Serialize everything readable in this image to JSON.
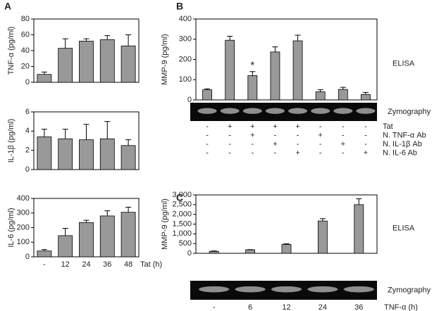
{
  "chart_data": [
    {
      "type": "bar",
      "panel": "A",
      "y_label": "TNF-α (pg/ml)",
      "categories": [
        null,
        null,
        null,
        null,
        null
      ],
      "values": [
        10,
        43,
        52,
        54,
        46
      ],
      "errors": [
        3,
        12,
        3,
        5,
        14
      ],
      "color": "#999999",
      "ylim": [
        0,
        80
      ],
      "yticks": [
        0,
        20,
        40,
        60,
        80
      ]
    },
    {
      "type": "bar",
      "y_label": "IL-1β (pg/ml)",
      "categories": [
        null,
        null,
        null,
        null,
        null
      ],
      "values": [
        3.4,
        3.2,
        3.1,
        3.2,
        2.5
      ],
      "errors": [
        0.8,
        1.0,
        1.6,
        1.8,
        0.6
      ],
      "color": "#999999",
      "ylim": [
        0,
        6
      ],
      "yticks": [
        0,
        2,
        4,
        6
      ]
    },
    {
      "type": "bar",
      "y_label": "IL-6 (pg/ml)",
      "x_label": "Tat (h)",
      "categories": [
        "-",
        "12",
        "24",
        "36",
        "48"
      ],
      "values": [
        40,
        145,
        235,
        280,
        305
      ],
      "errors": [
        10,
        50,
        15,
        35,
        35
      ],
      "color": "#999999",
      "ylim": [
        0,
        400
      ],
      "yticks": [
        0,
        100,
        200,
        300,
        400
      ]
    },
    {
      "type": "bar",
      "panel": "B",
      "y_label": "MMP-9 (pg/ml)",
      "categories": [
        null,
        null,
        null,
        null,
        null,
        null,
        null,
        null
      ],
      "values": [
        50,
        295,
        120,
        237,
        292,
        40,
        52,
        27
      ],
      "errors": [
        5,
        20,
        20,
        25,
        28,
        10,
        10,
        10
      ],
      "color": "#999999",
      "ylim": [
        0,
        400
      ],
      "yticks": [
        0,
        100,
        200,
        300,
        400
      ],
      "annotation": {
        "text": "*",
        "index": 2
      },
      "elisa_label": "ELISA",
      "zymography_label": "Zymography",
      "treatment_table": [
        {
          "label": "Tat",
          "signs": [
            "-",
            "+",
            "+",
            "+",
            "+",
            "-",
            "-",
            "-"
          ]
        },
        {
          "label": "N. TNF-α Ab",
          "signs": [
            "-",
            "-",
            "+",
            "-",
            "-",
            "+",
            "-",
            "-"
          ]
        },
        {
          "label": "N. IL-1β Ab",
          "signs": [
            "-",
            "-",
            "-",
            "+",
            "-",
            "-",
            "+",
            "-"
          ]
        },
        {
          "label": "N. IL-6 Ab",
          "signs": [
            "-",
            "-",
            "-",
            "-",
            "+",
            "-",
            "-",
            "+"
          ]
        }
      ]
    },
    {
      "type": "bar",
      "panel": "C",
      "y_label": "MMP-9 (pg/ml)",
      "x_label": "TNF-α (h)",
      "categories": [
        "-",
        "6",
        "12",
        "24",
        "36"
      ],
      "values": [
        100,
        180,
        460,
        1660,
        2500
      ],
      "errors": [
        20,
        10,
        30,
        120,
        300
      ],
      "color": "#999999",
      "ylim": [
        0,
        3000
      ],
      "yticks": [
        0,
        {
          "value": 500,
          "label": "500"
        },
        {
          "value": 1000,
          "label": "1,000"
        },
        {
          "value": 1500,
          "label": "1,500"
        },
        {
          "value": 2000,
          "label": "2,000"
        },
        {
          "value": 2500,
          "label": "2,500"
        },
        {
          "value": 3000,
          "label": "3,000"
        }
      ],
      "elisa_label": "ELISA",
      "zymography_label": "Zymography"
    }
  ]
}
